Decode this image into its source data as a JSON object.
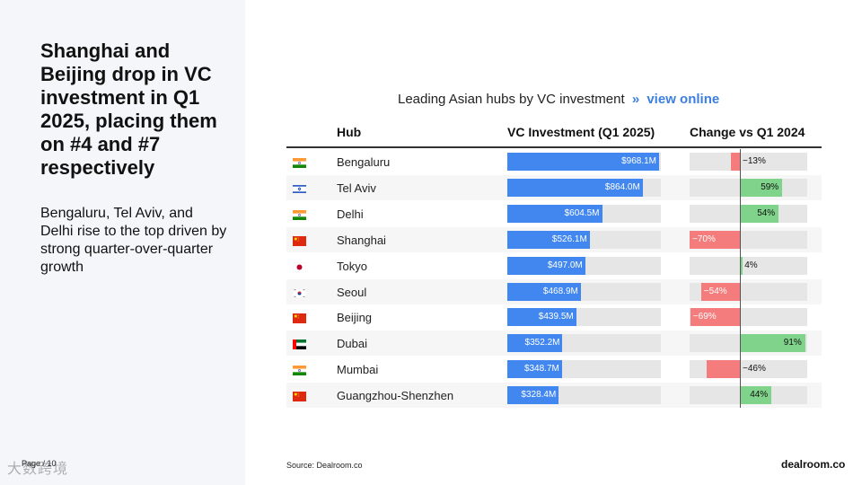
{
  "slide": {
    "headline": "Shanghai and Beijing drop in VC investment in Q1 2025, placing them on #4 and #7 respectively",
    "subhead": "Bengaluru, Tel Aviv, and Delhi rise to the top driven by strong quarter-over-quarter growth",
    "page_label": "Page / 10",
    "watermark": "大数跨境",
    "source": "Source:  Dealroom.co",
    "brand": "dealroom.co"
  },
  "chart_data": {
    "type": "bar",
    "title": "Leading Asian hubs by VC investment",
    "title_chevron": "»",
    "title_link": "view online",
    "columns": [
      "Hub",
      "VC Investment (Q1 2025)",
      "Change vs Q1 2024"
    ],
    "vc_max": 968.1,
    "change_range": [
      -70,
      91
    ],
    "colors": {
      "vc_bar": "#4287ef",
      "positive": "#7fd38a",
      "negative": "#f47c7c",
      "track": "#e6e6e6"
    },
    "rows": [
      {
        "hub": "Bengaluru",
        "flag": "india-flag",
        "vc": 968.1,
        "vc_label": "$968.1M",
        "change": -13,
        "change_label": "−13%"
      },
      {
        "hub": "Tel Aviv",
        "flag": "israel-flag",
        "vc": 864.0,
        "vc_label": "$864.0M",
        "change": 59,
        "change_label": "59%"
      },
      {
        "hub": "Delhi",
        "flag": "india-flag",
        "vc": 604.5,
        "vc_label": "$604.5M",
        "change": 54,
        "change_label": "54%"
      },
      {
        "hub": "Shanghai",
        "flag": "china-flag",
        "vc": 526.1,
        "vc_label": "$526.1M",
        "change": -70,
        "change_label": "−70%"
      },
      {
        "hub": "Tokyo",
        "flag": "japan-flag",
        "vc": 497.0,
        "vc_label": "$497.0M",
        "change": 4,
        "change_label": "4%"
      },
      {
        "hub": "Seoul",
        "flag": "south-korea-flag",
        "vc": 468.9,
        "vc_label": "$468.9M",
        "change": -54,
        "change_label": "−54%"
      },
      {
        "hub": "Beijing",
        "flag": "china-flag",
        "vc": 439.5,
        "vc_label": "$439.5M",
        "change": -69,
        "change_label": "−69%"
      },
      {
        "hub": "Dubai",
        "flag": "uae-flag",
        "vc": 352.2,
        "vc_label": "$352.2M",
        "change": 91,
        "change_label": "91%"
      },
      {
        "hub": "Mumbai",
        "flag": "india-flag",
        "vc": 348.7,
        "vc_label": "$348.7M",
        "change": -46,
        "change_label": "−46%"
      },
      {
        "hub": "Guangzhou-Shenzhen",
        "flag": "china-flag",
        "vc": 328.4,
        "vc_label": "$328.4M",
        "change": 44,
        "change_label": "44%"
      }
    ]
  }
}
